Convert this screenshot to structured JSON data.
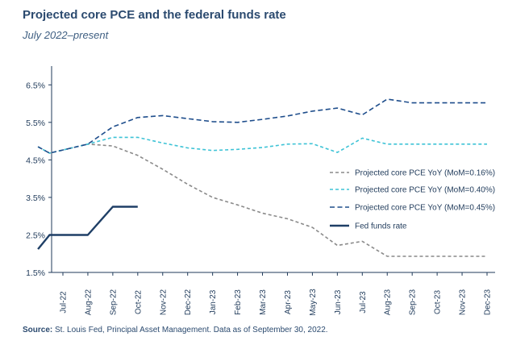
{
  "title": "Projected core PCE and the federal funds rate",
  "subtitle": "July 2022–present",
  "source_label": "Source:",
  "source_text": "St. Louis Fed, Principal Asset Management. Data as of September 30, 2022.",
  "chart_data": {
    "type": "line",
    "title": "Projected core PCE and the federal funds rate",
    "xlabel": "",
    "ylabel": "",
    "ylim": [
      1.5,
      7.0
    ],
    "yticks": [
      "1.5%",
      "2.5%",
      "3.5%",
      "4.5%",
      "5.5%",
      "6.5%"
    ],
    "ytick_values": [
      1.5,
      2.5,
      3.5,
      4.5,
      5.5,
      6.5
    ],
    "categories": [
      "Jul-22",
      "Aug-22",
      "Sep-22",
      "Oct-22",
      "Nov-22",
      "Dec-22",
      "Jan-23",
      "Feb-23",
      "Mar-23",
      "Apr-23",
      "May-23",
      "Jun-23",
      "Jul-23",
      "Aug-23",
      "Sep-23",
      "Oct-23",
      "Nov-23",
      "Dec-23"
    ],
    "grid": false,
    "legend_position": "right",
    "series": [
      {
        "name": "Projected core PCE YoY (MoM=0.16%)",
        "color": "#8a8a8a",
        "style": "dashed",
        "points": [
          [
            "2022-06",
            4.85
          ],
          [
            "2022-06-15",
            4.68
          ],
          [
            "2022-08",
            4.92
          ],
          [
            "2022-09",
            4.87
          ],
          [
            "2022-10",
            4.62
          ],
          [
            "2022-11",
            4.25
          ],
          [
            "2022-12",
            3.85
          ],
          [
            "2023-01",
            3.5
          ],
          [
            "2023-02",
            3.3
          ],
          [
            "2023-03",
            3.08
          ],
          [
            "2023-04",
            2.93
          ],
          [
            "2023-05",
            2.7
          ],
          [
            "2023-06",
            2.22
          ],
          [
            "2023-07",
            2.33
          ],
          [
            "2023-08",
            1.93
          ],
          [
            "2023-09",
            1.93
          ],
          [
            "2023-10",
            1.93
          ],
          [
            "2023-11",
            1.93
          ],
          [
            "2023-12",
            1.93
          ]
        ]
      },
      {
        "name": "Projected core PCE YoY (MoM=0.40%)",
        "color": "#3ec3d6",
        "style": "dashed",
        "points": [
          [
            "2022-06",
            4.85
          ],
          [
            "2022-06-15",
            4.68
          ],
          [
            "2022-08",
            4.92
          ],
          [
            "2022-09",
            5.1
          ],
          [
            "2022-10",
            5.1
          ],
          [
            "2022-11",
            4.95
          ],
          [
            "2022-12",
            4.82
          ],
          [
            "2023-01",
            4.75
          ],
          [
            "2023-02",
            4.78
          ],
          [
            "2023-03",
            4.83
          ],
          [
            "2023-04",
            4.92
          ],
          [
            "2023-05",
            4.93
          ],
          [
            "2023-06",
            4.7
          ],
          [
            "2023-07",
            5.08
          ],
          [
            "2023-08",
            4.92
          ],
          [
            "2023-09",
            4.92
          ],
          [
            "2023-10",
            4.92
          ],
          [
            "2023-11",
            4.92
          ],
          [
            "2023-12",
            4.92
          ]
        ]
      },
      {
        "name": "Projected core PCE YoY (MoM=0.45%)",
        "color": "#1f4e8c",
        "style": "dashed",
        "points": [
          [
            "2022-06",
            4.85
          ],
          [
            "2022-06-15",
            4.68
          ],
          [
            "2022-08",
            4.92
          ],
          [
            "2022-09",
            5.38
          ],
          [
            "2022-10",
            5.63
          ],
          [
            "2022-11",
            5.68
          ],
          [
            "2022-12",
            5.6
          ],
          [
            "2023-01",
            5.52
          ],
          [
            "2023-02",
            5.5
          ],
          [
            "2023-03",
            5.58
          ],
          [
            "2023-04",
            5.67
          ],
          [
            "2023-05",
            5.8
          ],
          [
            "2023-06",
            5.88
          ],
          [
            "2023-07",
            5.7
          ],
          [
            "2023-08",
            6.12
          ],
          [
            "2023-09",
            6.02
          ],
          [
            "2023-10",
            6.02
          ],
          [
            "2023-11",
            6.02
          ],
          [
            "2023-12",
            6.02
          ]
        ]
      },
      {
        "name": "Fed funds rate",
        "color": "#1f3f66",
        "style": "solid",
        "points": [
          [
            "2022-06",
            2.12
          ],
          [
            "2022-06-15",
            2.5
          ],
          [
            "2022-08",
            2.5
          ],
          [
            "2022-09",
            3.25
          ],
          [
            "2022-10",
            3.25
          ]
        ]
      }
    ]
  }
}
